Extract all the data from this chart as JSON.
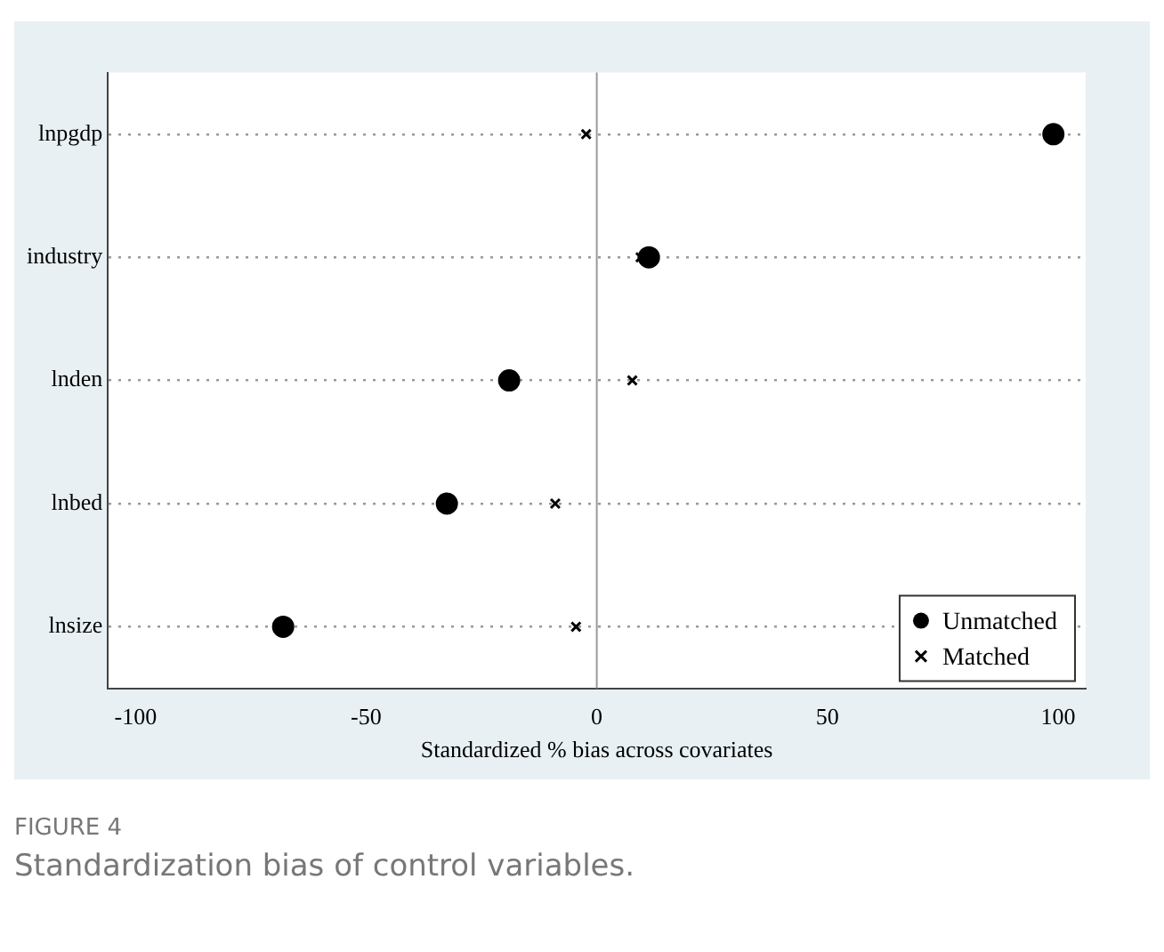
{
  "chart_data": {
    "type": "scatter",
    "orientation": "horizontal",
    "xlabel": "Standardized % bias across covariates",
    "categories": [
      "lnpgdp",
      "industry",
      "lnden",
      "lnbed",
      "lnsize"
    ],
    "series": [
      {
        "name": "Unmatched",
        "color": "#000000",
        "marker": "circle",
        "values": [
          99,
          11.3,
          -19,
          -32.5,
          -68
        ]
      },
      {
        "name": "Matched",
        "color": "#000000",
        "marker": "cross",
        "values": [
          -2.3,
          9.5,
          7.7,
          -9,
          -4.5
        ]
      }
    ],
    "xlim": [
      -106,
      106
    ],
    "xticks": [
      -100,
      -50,
      0,
      50,
      100
    ],
    "grid": "y",
    "legend": "bottom right",
    "ref_lines": [
      {
        "axis": "x",
        "value": 0,
        "color": "#999999"
      }
    ],
    "annotations": [
      "FIGURE 4",
      "Standardization bias of control variables."
    ]
  }
}
